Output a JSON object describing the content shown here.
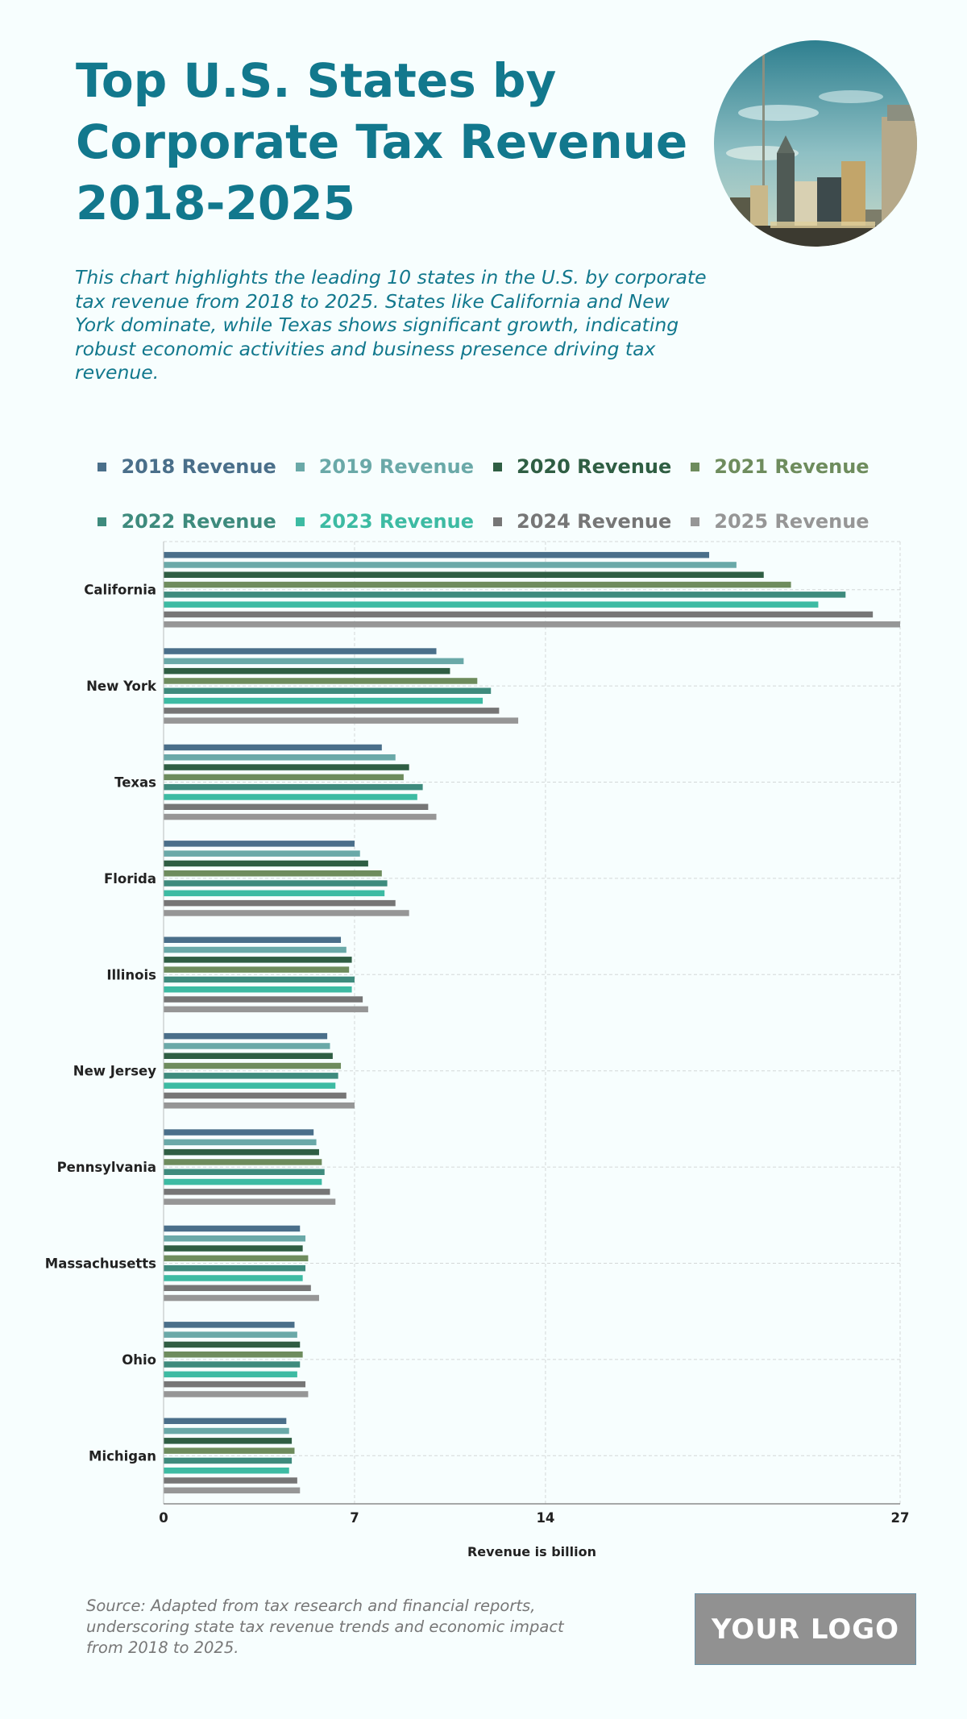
{
  "header": {
    "title": "Top U.S. States by Corporate Tax Revenue 2018-2025",
    "subtitle": "This chart highlights the leading 10 states in the U.S. by corporate tax revenue from 2018 to 2025. States like California and New York dominate, while Texas shows significant growth, indicating robust economic activities and business presence driving tax revenue."
  },
  "footer": {
    "source": "Source: Adapted from tax research and financial reports, underscoring state tax revenue trends and economic impact from 2018 to 2025.",
    "logo_text": "YOUR LOGO"
  },
  "chart_data": {
    "type": "bar",
    "orientation": "horizontal",
    "xlabel": "Revenue is billion",
    "xlim": [
      0,
      27
    ],
    "xticks": [
      0,
      7,
      14,
      27
    ],
    "grid": true,
    "legend_position": "top",
    "categories": [
      "California",
      "New York",
      "Texas",
      "Florida",
      "Illinois",
      "New Jersey",
      "Pennsylvania",
      "Massachusetts",
      "Ohio",
      "Michigan"
    ],
    "series": [
      {
        "name": "2018 Revenue",
        "color": "#4a6f8a",
        "values": [
          20,
          10,
          8,
          7,
          6.5,
          6,
          5.5,
          5,
          4.8,
          4.5
        ]
      },
      {
        "name": "2019 Revenue",
        "color": "#6aa9a8",
        "values": [
          21,
          11,
          8.5,
          7.2,
          6.7,
          6.1,
          5.6,
          5.2,
          4.9,
          4.6
        ]
      },
      {
        "name": "2020 Revenue",
        "color": "#2f5e43",
        "values": [
          22,
          10.5,
          9,
          7.5,
          6.9,
          6.2,
          5.7,
          5.1,
          5,
          4.7
        ]
      },
      {
        "name": "2021 Revenue",
        "color": "#6e8c5d",
        "values": [
          23,
          11.5,
          8.8,
          8,
          6.8,
          6.5,
          5.8,
          5.3,
          5.1,
          4.8
        ]
      },
      {
        "name": "2022 Revenue",
        "color": "#3e8b7d",
        "values": [
          25,
          12,
          9.5,
          8.2,
          7,
          6.4,
          5.9,
          5.2,
          5,
          4.7
        ]
      },
      {
        "name": "2023 Revenue",
        "color": "#3dbba3",
        "values": [
          24,
          11.7,
          9.3,
          8.1,
          6.9,
          6.3,
          5.8,
          5.1,
          4.9,
          4.6
        ]
      },
      {
        "name": "2024 Revenue",
        "color": "#767676",
        "values": [
          26,
          12.3,
          9.7,
          8.5,
          7.3,
          6.7,
          6.1,
          5.4,
          5.2,
          4.9
        ]
      },
      {
        "name": "2025 Revenue",
        "color": "#969696",
        "values": [
          27,
          13,
          10,
          9,
          7.5,
          7,
          6.3,
          5.7,
          5.3,
          5
        ]
      }
    ]
  }
}
